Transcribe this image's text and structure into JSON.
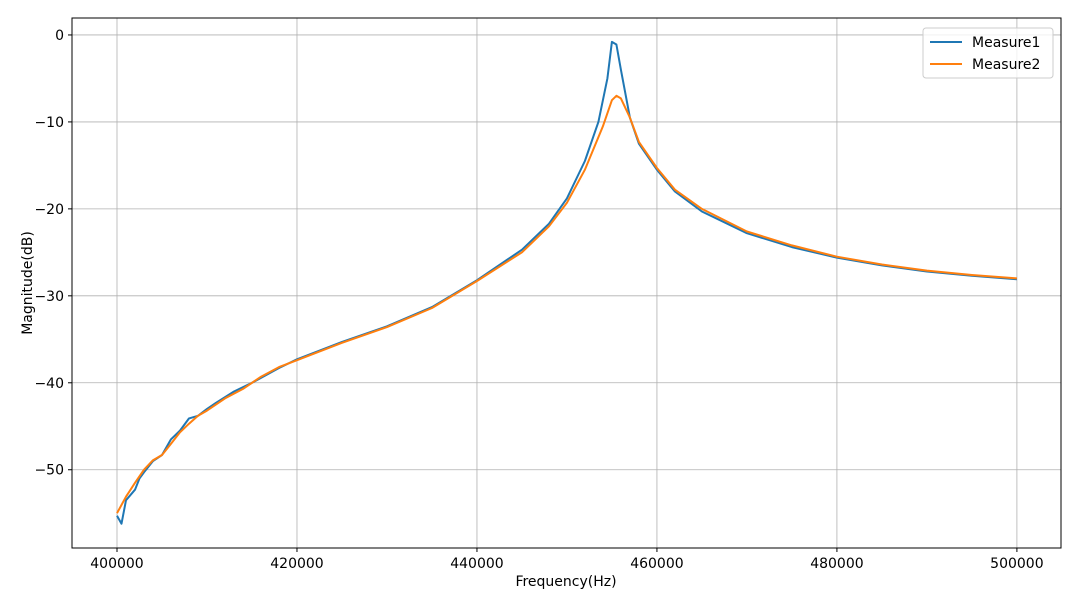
{
  "chart_data": {
    "type": "line",
    "title": "",
    "xlabel": "Frequency(Hz)",
    "ylabel": "Magnitude(dB)",
    "xlim": [
      395000,
      504900
    ],
    "ylim": [
      -59,
      1.95
    ],
    "xticks": [
      400000,
      420000,
      440000,
      460000,
      480000,
      500000
    ],
    "xtick_labels": [
      "400000",
      "420000",
      "440000",
      "460000",
      "480000",
      "500000"
    ],
    "yticks": [
      0,
      -10,
      -20,
      -30,
      -40,
      -50
    ],
    "ytick_labels": [
      "0",
      "−10",
      "−20",
      "−30",
      "−40",
      "−50"
    ],
    "grid": true,
    "legend": "top-right",
    "series": [
      {
        "name": "Measure1",
        "color": "#1f77b4",
        "x": [
          400000,
          400500,
          401000,
          402000,
          402500,
          403000,
          404000,
          405000,
          406000,
          407000,
          408000,
          409000,
          410000,
          411000,
          413000,
          415000,
          418000,
          420000,
          425000,
          430000,
          435000,
          440000,
          445000,
          448000,
          450000,
          452000,
          453500,
          454500,
          455000,
          455500,
          456000,
          457000,
          458000,
          460000,
          462000,
          465000,
          470000,
          475000,
          480000,
          485000,
          490000,
          495000,
          500000
        ],
        "y": [
          -55.3,
          -56.2,
          -53.5,
          -52.3,
          -51,
          -50.3,
          -49,
          -48.3,
          -46.5,
          -45.5,
          -44.1,
          -43.8,
          -43,
          -42.3,
          -41,
          -40,
          -38.3,
          -37.3,
          -35.3,
          -33.5,
          -31.3,
          -28.2,
          -24.7,
          -21.7,
          -18.8,
          -14.5,
          -10,
          -5,
          -0.8,
          -1.1,
          -4,
          -9.5,
          -12.5,
          -15.5,
          -18,
          -20.3,
          -22.8,
          -24.4,
          -25.6,
          -26.5,
          -27.2,
          -27.7,
          -28.1
        ]
      },
      {
        "name": "Measure2",
        "color": "#ff7f0e",
        "x": [
          400000,
          401000,
          402000,
          403000,
          404000,
          405000,
          406000,
          407000,
          408000,
          409000,
          410000,
          412000,
          414000,
          416000,
          418000,
          420000,
          425000,
          430000,
          435000,
          440000,
          445000,
          448000,
          450000,
          452000,
          454000,
          455000,
          455500,
          456000,
          457000,
          458000,
          460000,
          462000,
          465000,
          470000,
          475000,
          480000,
          485000,
          490000,
          495000,
          500000
        ],
        "y": [
          -55,
          -53.1,
          -51.5,
          -50,
          -48.9,
          -48.3,
          -47,
          -45.7,
          -44.7,
          -43.8,
          -43.2,
          -41.8,
          -40.7,
          -39.3,
          -38.2,
          -37.4,
          -35.4,
          -33.6,
          -31.4,
          -28.3,
          -25,
          -22,
          -19.3,
          -15.5,
          -10.5,
          -7.5,
          -7.0,
          -7.3,
          -9.5,
          -12.3,
          -15.3,
          -17.8,
          -20.0,
          -22.6,
          -24.2,
          -25.5,
          -26.4,
          -27.1,
          -27.6,
          -28.0
        ]
      }
    ]
  }
}
